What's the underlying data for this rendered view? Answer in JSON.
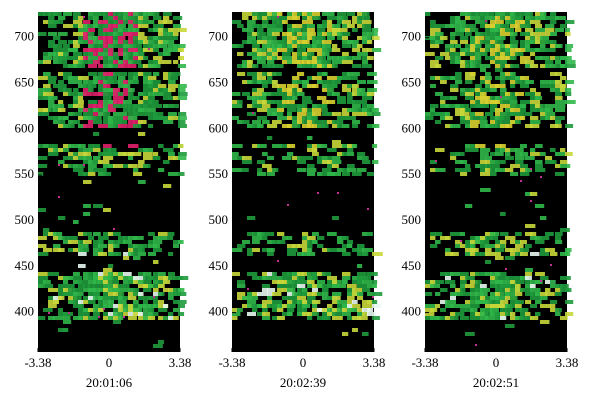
{
  "chart_data": [
    {
      "type": "image",
      "xlabel": "20:01:06",
      "xlim": [
        -3.38,
        3.38
      ],
      "xticks": [
        -3.38,
        0,
        3.38
      ],
      "ylim": [
        357,
        728
      ],
      "yticks": [
        400,
        450,
        500,
        550,
        600,
        650,
        700
      ]
    },
    {
      "type": "image",
      "xlabel": "20:02:39",
      "xlim": [
        -3.38,
        3.38
      ],
      "xticks": [
        -3.38,
        0,
        3.38
      ],
      "ylim": [
        357,
        728
      ],
      "yticks": [
        400,
        450,
        500,
        550,
        600,
        650,
        700
      ]
    },
    {
      "type": "image",
      "xlabel": "20:02:51",
      "xlim": [
        -3.38,
        3.38
      ],
      "xticks": [
        -3.38,
        0,
        3.38
      ],
      "ylim": [
        357,
        728
      ],
      "yticks": [
        400,
        450,
        500,
        550,
        600,
        650,
        700
      ]
    }
  ]
}
